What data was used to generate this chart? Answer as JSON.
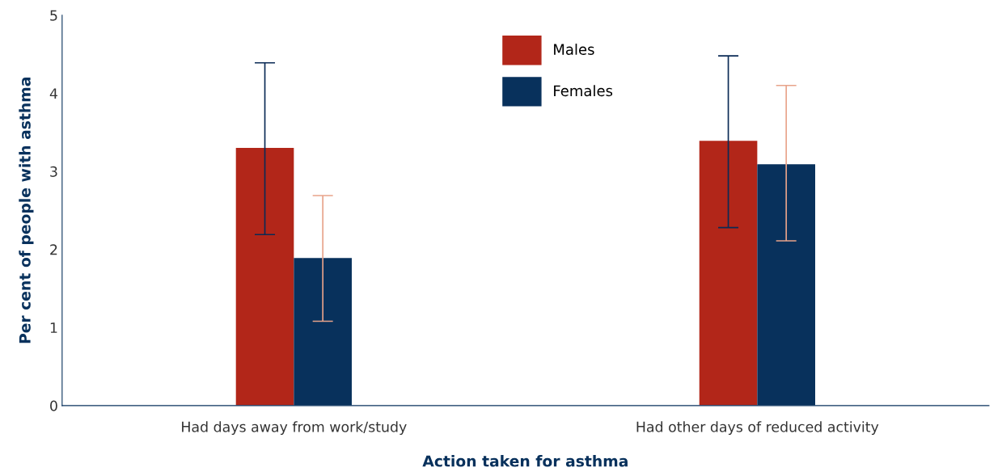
{
  "chart_data": {
    "type": "bar",
    "xlabel": "Action taken for asthma",
    "ylabel": "Per cent of people with asthma",
    "categories": [
      "Had days away from work/study",
      "Had other days of reduced activity"
    ],
    "series": [
      {
        "name": "Males",
        "color": "#b22619",
        "values": [
          3.3,
          3.39
        ],
        "errors": [
          [
            2.19,
            4.39
          ],
          [
            2.28,
            4.48
          ]
        ]
      },
      {
        "name": "Females",
        "color": "#08315c",
        "values": [
          1.89,
          3.09
        ],
        "errors": [
          [
            1.08,
            2.69
          ],
          [
            2.11,
            4.1
          ]
        ]
      }
    ],
    "ylim": [
      0,
      5
    ],
    "yticks": [
      0,
      1,
      2,
      3,
      4,
      5
    ],
    "grid": false,
    "legend": "top"
  }
}
